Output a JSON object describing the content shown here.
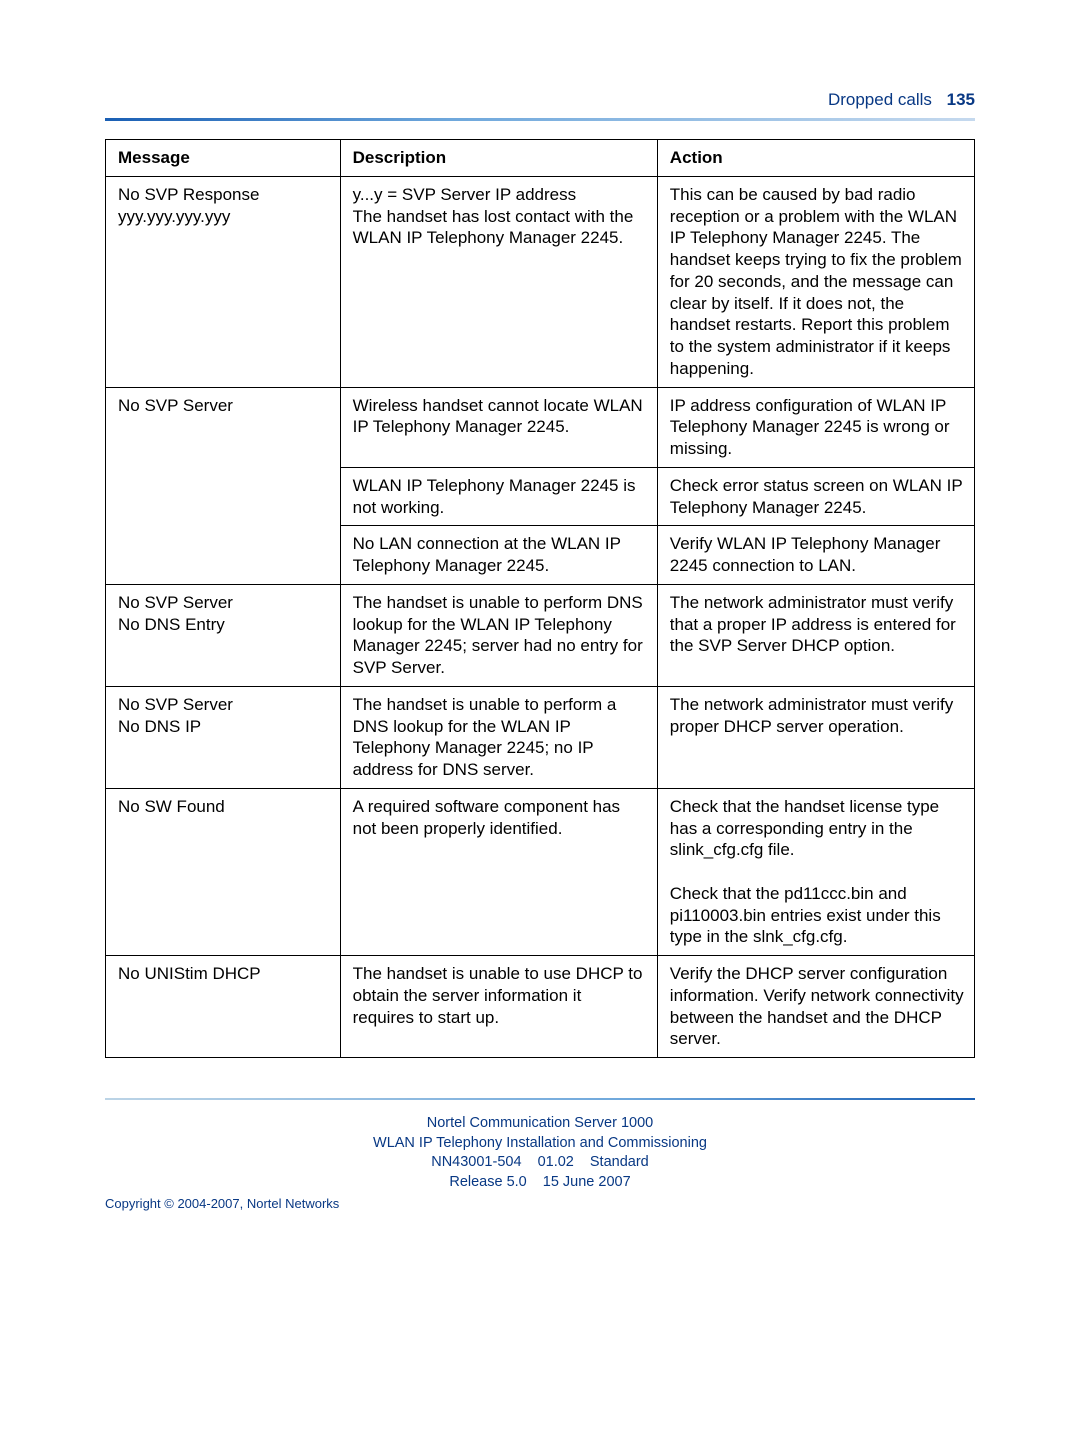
{
  "header": {
    "section": "Dropped calls",
    "page_number": "135"
  },
  "table": {
    "columns": [
      "Message",
      "Description",
      "Action"
    ],
    "groups": [
      {
        "message": "No SVP Response\nyyy.yyy.yyy.yyy",
        "rows": [
          {
            "description": "y...y = SVP Server IP address\nThe handset has lost contact with the WLAN IP Telephony Manager 2245.",
            "action": "This can be caused by bad radio reception or a problem with the WLAN IP Telephony Manager 2245. The handset keeps trying to fix the problem for 20 seconds, and the message can clear by itself. If it does not, the handset restarts. Report this problem to the system administrator if it keeps happening."
          }
        ]
      },
      {
        "message": "No SVP Server",
        "rows": [
          {
            "description": "Wireless handset cannot locate WLAN IP Telephony Manager 2245.",
            "action": "IP address configuration of WLAN IP Telephony Manager 2245 is wrong or missing."
          },
          {
            "description": "WLAN IP Telephony Manager 2245 is not working.",
            "action": "Check error status screen on WLAN IP Telephony Manager 2245."
          },
          {
            "description": "No LAN connection at the WLAN IP Telephony Manager 2245.",
            "action": "Verify WLAN IP Telephony Manager 2245 connection to LAN."
          }
        ]
      },
      {
        "message": "No SVP Server\nNo DNS Entry",
        "rows": [
          {
            "description": "The handset is unable to perform DNS lookup for the WLAN IP Telephony Manager 2245; server had no entry for SVP Server.",
            "action": "The network administrator must verify that a proper IP address is entered for the SVP Server DHCP option."
          }
        ]
      },
      {
        "message": "No SVP Server\nNo DNS IP",
        "rows": [
          {
            "description": "The handset is unable to perform a DNS lookup for the WLAN IP Telephony Manager 2245; no IP address for DNS server.",
            "action": "The network administrator must verify proper DHCP server operation."
          }
        ]
      },
      {
        "message": "No SW Found",
        "rows": [
          {
            "description": "A required software component has not been properly identified.",
            "action": "Check that the handset license type has a corresponding entry in the slink_cfg.cfg file.\n\nCheck that the pd11ccc.bin and pi110003.bin entries exist under this type in the slnk_cfg.cfg."
          }
        ]
      },
      {
        "message": "No UNIStim DHCP",
        "rows": [
          {
            "description": "The handset is unable to use DHCP to obtain the server information it requires to start up.",
            "action": "Verify the DHCP server configuration information. Verify network connectivity between the handset and the DHCP server."
          }
        ]
      }
    ]
  },
  "footer": {
    "line1": "Nortel Communication Server 1000",
    "line2": "WLAN IP Telephony Installation and Commissioning",
    "doc_id": "NN43001-504",
    "doc_ver": "01.02",
    "doc_status": "Standard",
    "release": "Release 5.0",
    "date": "15 June 2007",
    "copyright": "Copyright © 2004-2007, Nortel Networks"
  }
}
